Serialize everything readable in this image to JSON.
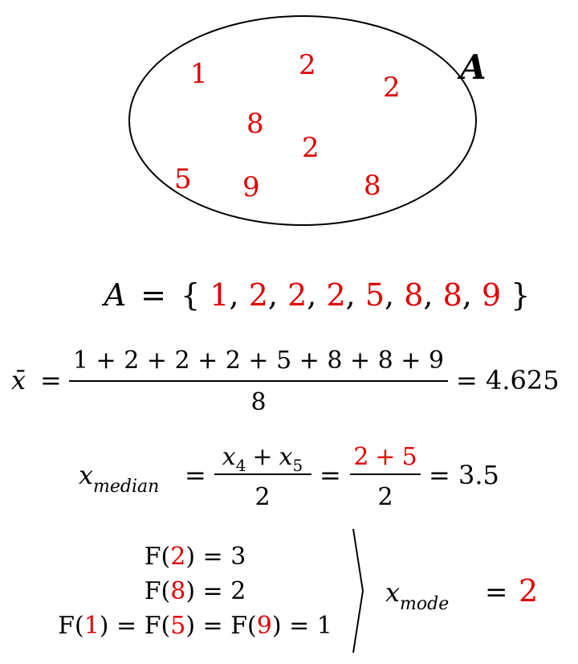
{
  "set": {
    "name": "A",
    "members": [
      "1",
      "2",
      "2",
      "8",
      "2",
      "5",
      "9",
      "8"
    ]
  },
  "set_listing": {
    "lhs": "A",
    "equals": "=",
    "open": "{",
    "close": "}",
    "separator": ",",
    "values": [
      "1",
      "2",
      "2",
      "2",
      "5",
      "8",
      "8",
      "9"
    ]
  },
  "mean": {
    "lhs": "x̄",
    "equals": "=",
    "numerator": "1 + 2 + 2 + 2 + 5 + 8 + 8 + 9",
    "denominator": "8",
    "result": "= 4.625"
  },
  "median": {
    "var": "x",
    "subscript": "median",
    "equals": "=",
    "num_a": "x",
    "num_a_sub": "4",
    "plus": "+",
    "num_b": "x",
    "num_b_sub": "5",
    "den": "2",
    "equals2": "=",
    "val_a": "2",
    "plus2": "+",
    "val_b": "5",
    "den2": "2",
    "result": "= 3.5"
  },
  "mode": {
    "rows": [
      {
        "parts": [
          {
            "t": "F(",
            "red": false
          },
          {
            "t": "2",
            "red": true
          },
          {
            "t": ") = 3",
            "red": false
          }
        ]
      },
      {
        "parts": [
          {
            "t": "F(",
            "red": false
          },
          {
            "t": "8",
            "red": true
          },
          {
            "t": ") = 2",
            "red": false
          }
        ]
      },
      {
        "parts": [
          {
            "t": "F(",
            "red": false
          },
          {
            "t": "1",
            "red": true
          },
          {
            "t": ") = F(",
            "red": false
          },
          {
            "t": "5",
            "red": true
          },
          {
            "t": ") = F(",
            "red": false
          },
          {
            "t": "9",
            "red": true
          },
          {
            "t": ") = 1",
            "red": false
          }
        ]
      }
    ],
    "var": "x",
    "subscript": "mode",
    "equals": "=",
    "value": "2"
  },
  "colors": {
    "accent": "#e00000",
    "text": "#000000"
  }
}
